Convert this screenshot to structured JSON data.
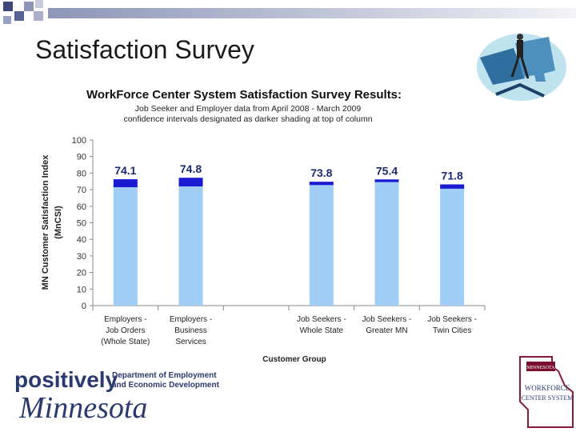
{
  "slide": {
    "title": "Satisfaction Survey"
  },
  "chart_data": {
    "type": "bar",
    "title": "WorkForce Center System Satisfaction Survey Results:",
    "subtitle_lines": [
      "Job Seeker and Employer data from April 2008 - March 2009",
      "confidence intervals designated as darker shading at top of column"
    ],
    "ylabel_lines": [
      "MN Customer Satisfaction Index",
      "(MnCSI)"
    ],
    "xlabel": "Customer Group",
    "ylim": [
      0,
      100
    ],
    "yticks": [
      0,
      10,
      20,
      30,
      40,
      50,
      60,
      70,
      80,
      90,
      100
    ],
    "categories": [
      [
        "Employers -",
        "Job Orders",
        "(Whole State)"
      ],
      [
        "Employers -",
        "Business",
        "Services"
      ],
      [
        ""
      ],
      [
        "Job Seekers -",
        "Whole State"
      ],
      [
        "Job Seekers -",
        "Greater MN"
      ],
      [
        "Job Seekers -",
        "Twin Cities"
      ]
    ],
    "values": [
      74.1,
      74.8,
      null,
      73.8,
      75.4,
      71.8
    ],
    "value_labels": [
      "74.1",
      "74.8",
      "",
      "73.8",
      "75.4",
      "71.8"
    ],
    "ci_lower": [
      71.5,
      72.0,
      null,
      72.8,
      74.6,
      70.6
    ],
    "ci_upper": [
      76.3,
      77.2,
      null,
      74.8,
      76.2,
      73.2
    ],
    "colors": {
      "bar": "#9fcdf5",
      "ci": "#1a1ad0",
      "grid": "#cccccc"
    }
  },
  "footer": {
    "positively": "positively",
    "minnesota": "Minnesota",
    "dept_line1": "Department of Employment",
    "dept_line2": "and Economic Development",
    "wfc_top": "MINNESOTA",
    "wfc_line1": "WORKFORCE",
    "wfc_line2": "CENTER SYSTEM"
  }
}
